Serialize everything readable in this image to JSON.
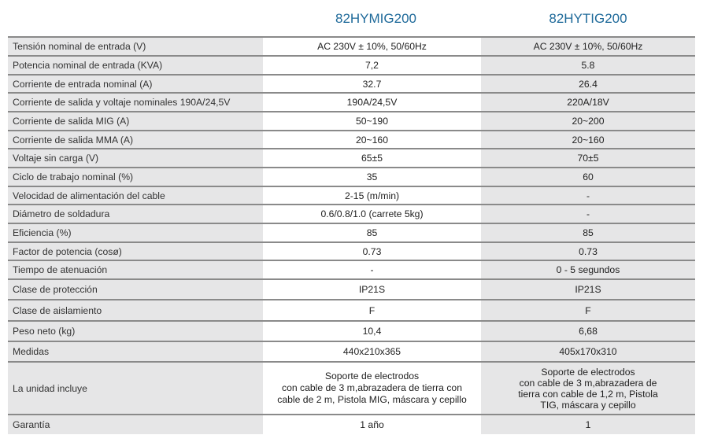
{
  "header": {
    "model_a": "82HYMIG200",
    "model_b": "82HYTIG200"
  },
  "rows": [
    {
      "label": "Tensión nominal de entrada (V)",
      "a": "AC 230V ± 10%, 50/60Hz",
      "b": "AC 230V ± 10%, 50/60Hz"
    },
    {
      "label": "Potencia nominal de entrada (KVA)",
      "a": "7,2",
      "b": "5.8"
    },
    {
      "label": "Corriente de entrada nominal (A)",
      "a": "32.7",
      "b": "26.4"
    },
    {
      "label": "Corriente de salida y voltaje nominales 190A/24,5V",
      "a": "190A/24,5V",
      "b": "220A/18V"
    },
    {
      "label": "Corriente de salida MIG (A)",
      "a": "50~190",
      "b": "20~200"
    },
    {
      "label": "Corriente de salida MMA (A)",
      "a": "20~160",
      "b": "20~160"
    },
    {
      "label": "Voltaje sin carga (V)",
      "a": "65±5",
      "b": "70±5"
    },
    {
      "label": "Ciclo de trabajo nominal (%)",
      "a": "35",
      "b": "60"
    },
    {
      "label": "Velocidad de alimentación del cable",
      "a": "2-15 (m/min)",
      "b": "-"
    },
    {
      "label": "Diámetro de soldadura",
      "a": "0.6/0.8/1.0 (carrete 5kg)",
      "b": "-"
    },
    {
      "label": "Eficiencia (%)",
      "a": "85",
      "b": "85"
    },
    {
      "label": "Factor de potencia (cosø)",
      "a": "0.73",
      "b": "0.73"
    },
    {
      "label": "Tiempo de atenuación",
      "a": "-",
      "b": "0 - 5 segundos"
    },
    {
      "label": "Clase de protección",
      "a": "IP21S",
      "b": "IP21S"
    },
    {
      "label": "Clase de aislamiento",
      "a": "F",
      "b": "F"
    },
    {
      "label": "Peso neto (kg)",
      "a": "10,4",
      "b": "6,68"
    },
    {
      "label": "Medidas",
      "a": "440x210x365",
      "b": "405x170x310"
    },
    {
      "label": "La unidad incluye",
      "a_lines": [
        "Soporte de electrodos",
        "con cable de 3 m,abrazadera de tierra con",
        "cable de 2 m, Pistola MIG, máscara y cepillo"
      ],
      "b_lines": [
        "Soporte de electrodos",
        "con cable de 3 m,abrazadera de",
        "tierra con cable de 1,2 m, Pistola",
        "TIG, máscara y cepillo"
      ]
    },
    {
      "label": "Garantía",
      "a": "1 año",
      "b": "1"
    }
  ]
}
